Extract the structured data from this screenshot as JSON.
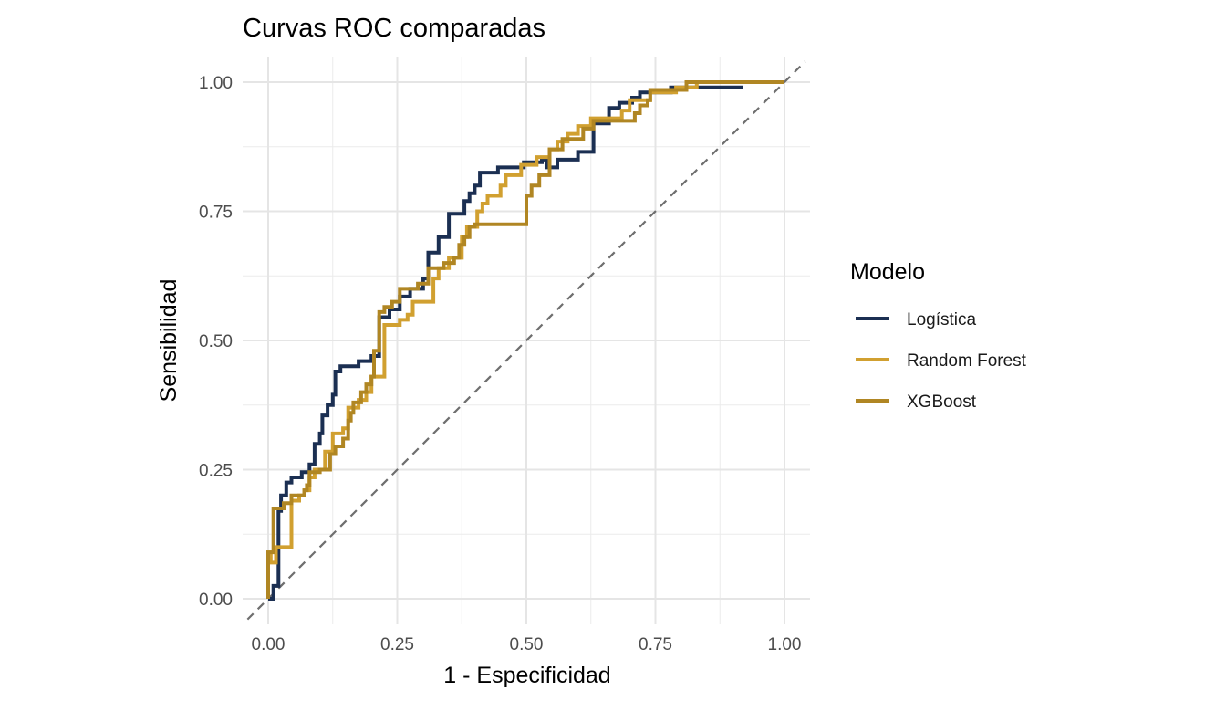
{
  "chart_data": {
    "type": "line",
    "title": "Curvas ROC comparadas",
    "xlabel": "1 - Especificidad",
    "ylabel": "Sensibilidad",
    "xlim": [
      0,
      1
    ],
    "ylim": [
      0,
      1
    ],
    "x_ticks": [
      "0.00",
      "0.25",
      "0.50",
      "0.75",
      "1.00"
    ],
    "y_ticks": [
      "0.00",
      "0.25",
      "0.50",
      "0.75",
      "1.00"
    ],
    "grid": true,
    "reference_line": {
      "type": "diagonal",
      "style": "dashed",
      "color": "#6E6E6E"
    },
    "legend": {
      "title": "Modelo",
      "placement": "right"
    },
    "series": [
      {
        "name": "Logística",
        "color": "#1B2F52",
        "points": [
          [
            0,
            0
          ],
          [
            0.01,
            0
          ],
          [
            0.01,
            0.025
          ],
          [
            0.02,
            0.025
          ],
          [
            0.02,
            0.17
          ],
          [
            0.025,
            0.17
          ],
          [
            0.025,
            0.2
          ],
          [
            0.035,
            0.2
          ],
          [
            0.035,
            0.225
          ],
          [
            0.045,
            0.225
          ],
          [
            0.045,
            0.235
          ],
          [
            0.065,
            0.235
          ],
          [
            0.065,
            0.245
          ],
          [
            0.08,
            0.245
          ],
          [
            0.08,
            0.26
          ],
          [
            0.09,
            0.26
          ],
          [
            0.09,
            0.3
          ],
          [
            0.1,
            0.3
          ],
          [
            0.1,
            0.32
          ],
          [
            0.105,
            0.32
          ],
          [
            0.105,
            0.355
          ],
          [
            0.115,
            0.355
          ],
          [
            0.115,
            0.375
          ],
          [
            0.125,
            0.375
          ],
          [
            0.125,
            0.395
          ],
          [
            0.13,
            0.395
          ],
          [
            0.13,
            0.44
          ],
          [
            0.14,
            0.44
          ],
          [
            0.14,
            0.45
          ],
          [
            0.175,
            0.45
          ],
          [
            0.175,
            0.46
          ],
          [
            0.2,
            0.46
          ],
          [
            0.2,
            0.47
          ],
          [
            0.215,
            0.47
          ],
          [
            0.215,
            0.545
          ],
          [
            0.235,
            0.545
          ],
          [
            0.235,
            0.56
          ],
          [
            0.255,
            0.56
          ],
          [
            0.255,
            0.585
          ],
          [
            0.275,
            0.585
          ],
          [
            0.275,
            0.6
          ],
          [
            0.3,
            0.6
          ],
          [
            0.3,
            0.62
          ],
          [
            0.31,
            0.62
          ],
          [
            0.31,
            0.67
          ],
          [
            0.33,
            0.67
          ],
          [
            0.33,
            0.7
          ],
          [
            0.35,
            0.7
          ],
          [
            0.35,
            0.745
          ],
          [
            0.38,
            0.745
          ],
          [
            0.38,
            0.77
          ],
          [
            0.39,
            0.77
          ],
          [
            0.39,
            0.785
          ],
          [
            0.4,
            0.785
          ],
          [
            0.4,
            0.8
          ],
          [
            0.41,
            0.8
          ],
          [
            0.41,
            0.825
          ],
          [
            0.445,
            0.825
          ],
          [
            0.445,
            0.835
          ],
          [
            0.495,
            0.835
          ],
          [
            0.495,
            0.845
          ],
          [
            0.53,
            0.845
          ],
          [
            0.53,
            0.85
          ],
          [
            0.54,
            0.85
          ],
          [
            0.54,
            0.835
          ],
          [
            0.56,
            0.835
          ],
          [
            0.56,
            0.85
          ],
          [
            0.6,
            0.85
          ],
          [
            0.6,
            0.865
          ],
          [
            0.63,
            0.865
          ],
          [
            0.63,
            0.92
          ],
          [
            0.66,
            0.92
          ],
          [
            0.66,
            0.95
          ],
          [
            0.68,
            0.95
          ],
          [
            0.68,
            0.96
          ],
          [
            0.705,
            0.96
          ],
          [
            0.705,
            0.97
          ],
          [
            0.72,
            0.97
          ],
          [
            0.72,
            0.98
          ],
          [
            0.78,
            0.98
          ],
          [
            0.78,
            0.99
          ],
          [
            0.92,
            0.99
          ]
        ]
      },
      {
        "name": "Random Forest",
        "color": "#D1A030",
        "points": [
          [
            0,
            0
          ],
          [
            0,
            0.09
          ],
          [
            0.005,
            0.09
          ],
          [
            0.005,
            0.07
          ],
          [
            0.015,
            0.07
          ],
          [
            0.015,
            0.1
          ],
          [
            0.045,
            0.1
          ],
          [
            0.045,
            0.19
          ],
          [
            0.06,
            0.19
          ],
          [
            0.06,
            0.2
          ],
          [
            0.07,
            0.2
          ],
          [
            0.07,
            0.21
          ],
          [
            0.08,
            0.21
          ],
          [
            0.08,
            0.235
          ],
          [
            0.09,
            0.235
          ],
          [
            0.09,
            0.25
          ],
          [
            0.11,
            0.25
          ],
          [
            0.11,
            0.285
          ],
          [
            0.125,
            0.285
          ],
          [
            0.125,
            0.32
          ],
          [
            0.145,
            0.32
          ],
          [
            0.145,
            0.33
          ],
          [
            0.155,
            0.33
          ],
          [
            0.155,
            0.37
          ],
          [
            0.175,
            0.37
          ],
          [
            0.175,
            0.385
          ],
          [
            0.19,
            0.385
          ],
          [
            0.19,
            0.4
          ],
          [
            0.2,
            0.4
          ],
          [
            0.2,
            0.43
          ],
          [
            0.225,
            0.43
          ],
          [
            0.225,
            0.53
          ],
          [
            0.255,
            0.53
          ],
          [
            0.255,
            0.54
          ],
          [
            0.27,
            0.54
          ],
          [
            0.27,
            0.55
          ],
          [
            0.28,
            0.55
          ],
          [
            0.28,
            0.575
          ],
          [
            0.32,
            0.575
          ],
          [
            0.32,
            0.62
          ],
          [
            0.33,
            0.62
          ],
          [
            0.33,
            0.64
          ],
          [
            0.35,
            0.64
          ],
          [
            0.35,
            0.66
          ],
          [
            0.375,
            0.66
          ],
          [
            0.375,
            0.7
          ],
          [
            0.385,
            0.7
          ],
          [
            0.385,
            0.72
          ],
          [
            0.405,
            0.72
          ],
          [
            0.405,
            0.75
          ],
          [
            0.415,
            0.75
          ],
          [
            0.415,
            0.765
          ],
          [
            0.425,
            0.765
          ],
          [
            0.425,
            0.78
          ],
          [
            0.45,
            0.78
          ],
          [
            0.45,
            0.8
          ],
          [
            0.46,
            0.8
          ],
          [
            0.46,
            0.82
          ],
          [
            0.49,
            0.82
          ],
          [
            0.49,
            0.84
          ],
          [
            0.52,
            0.84
          ],
          [
            0.52,
            0.855
          ],
          [
            0.545,
            0.855
          ],
          [
            0.545,
            0.87
          ],
          [
            0.56,
            0.87
          ],
          [
            0.56,
            0.885
          ],
          [
            0.58,
            0.885
          ],
          [
            0.58,
            0.9
          ],
          [
            0.6,
            0.9
          ],
          [
            0.6,
            0.915
          ],
          [
            0.625,
            0.915
          ],
          [
            0.625,
            0.93
          ],
          [
            0.685,
            0.93
          ],
          [
            0.685,
            0.945
          ],
          [
            0.7,
            0.945
          ],
          [
            0.7,
            0.965
          ],
          [
            0.74,
            0.965
          ],
          [
            0.74,
            0.98
          ],
          [
            0.79,
            0.98
          ],
          [
            0.79,
            0.99
          ],
          [
            0.83,
            0.99
          ],
          [
            0.83,
            1.0
          ],
          [
            1.0,
            1.0
          ]
        ]
      },
      {
        "name": "XGBoost",
        "color": "#B08623",
        "points": [
          [
            0,
            0
          ],
          [
            0,
            0.09
          ],
          [
            0.01,
            0.09
          ],
          [
            0.01,
            0.175
          ],
          [
            0.03,
            0.175
          ],
          [
            0.03,
            0.185
          ],
          [
            0.045,
            0.185
          ],
          [
            0.045,
            0.2
          ],
          [
            0.07,
            0.2
          ],
          [
            0.07,
            0.21
          ],
          [
            0.075,
            0.21
          ],
          [
            0.075,
            0.22
          ],
          [
            0.08,
            0.22
          ],
          [
            0.08,
            0.245
          ],
          [
            0.1,
            0.245
          ],
          [
            0.1,
            0.25
          ],
          [
            0.12,
            0.25
          ],
          [
            0.12,
            0.28
          ],
          [
            0.13,
            0.28
          ],
          [
            0.13,
            0.295
          ],
          [
            0.145,
            0.295
          ],
          [
            0.145,
            0.31
          ],
          [
            0.155,
            0.31
          ],
          [
            0.155,
            0.345
          ],
          [
            0.16,
            0.345
          ],
          [
            0.16,
            0.36
          ],
          [
            0.165,
            0.36
          ],
          [
            0.165,
            0.38
          ],
          [
            0.18,
            0.38
          ],
          [
            0.18,
            0.4
          ],
          [
            0.19,
            0.4
          ],
          [
            0.19,
            0.415
          ],
          [
            0.2,
            0.415
          ],
          [
            0.2,
            0.43
          ],
          [
            0.205,
            0.43
          ],
          [
            0.205,
            0.48
          ],
          [
            0.215,
            0.48
          ],
          [
            0.215,
            0.555
          ],
          [
            0.225,
            0.555
          ],
          [
            0.225,
            0.565
          ],
          [
            0.24,
            0.565
          ],
          [
            0.24,
            0.575
          ],
          [
            0.255,
            0.575
          ],
          [
            0.255,
            0.6
          ],
          [
            0.29,
            0.6
          ],
          [
            0.29,
            0.61
          ],
          [
            0.31,
            0.61
          ],
          [
            0.31,
            0.64
          ],
          [
            0.34,
            0.64
          ],
          [
            0.34,
            0.65
          ],
          [
            0.36,
            0.65
          ],
          [
            0.36,
            0.66
          ],
          [
            0.37,
            0.66
          ],
          [
            0.37,
            0.685
          ],
          [
            0.38,
            0.685
          ],
          [
            0.38,
            0.7
          ],
          [
            0.39,
            0.7
          ],
          [
            0.39,
            0.72
          ],
          [
            0.4,
            0.72
          ],
          [
            0.4,
            0.725
          ],
          [
            0.5,
            0.725
          ],
          [
            0.5,
            0.78
          ],
          [
            0.51,
            0.78
          ],
          [
            0.51,
            0.8
          ],
          [
            0.525,
            0.8
          ],
          [
            0.525,
            0.82
          ],
          [
            0.545,
            0.82
          ],
          [
            0.545,
            0.87
          ],
          [
            0.57,
            0.87
          ],
          [
            0.57,
            0.89
          ],
          [
            0.61,
            0.89
          ],
          [
            0.61,
            0.91
          ],
          [
            0.63,
            0.91
          ],
          [
            0.63,
            0.925
          ],
          [
            0.71,
            0.925
          ],
          [
            0.71,
            0.94
          ],
          [
            0.72,
            0.94
          ],
          [
            0.72,
            0.955
          ],
          [
            0.735,
            0.955
          ],
          [
            0.735,
            0.965
          ],
          [
            0.74,
            0.965
          ],
          [
            0.74,
            0.985
          ],
          [
            0.81,
            0.985
          ],
          [
            0.81,
            1.0
          ],
          [
            1.0,
            1.0
          ]
        ]
      }
    ]
  }
}
